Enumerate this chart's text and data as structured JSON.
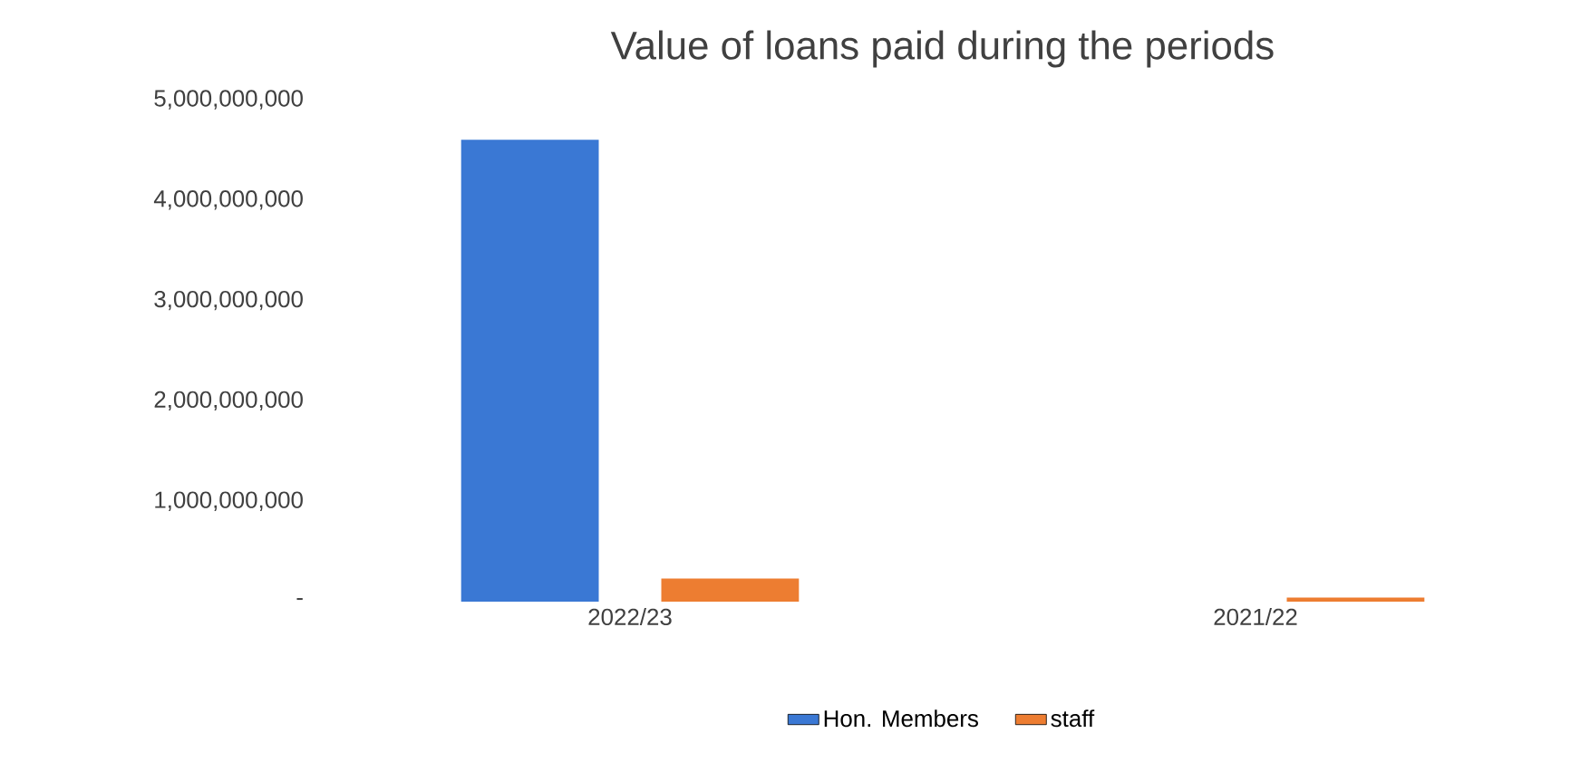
{
  "chart_data": {
    "type": "bar",
    "title": "Value of loans paid during the periods",
    "categories": [
      "2022/23",
      "2021/22"
    ],
    "series": [
      {
        "name": "Hon. Members",
        "color": "#3a78d4",
        "values": [
          4600000000,
          0
        ]
      },
      {
        "name": "staff",
        "color": "#ed7d31",
        "values": [
          230000000,
          40000000
        ]
      }
    ],
    "ylim": [
      0,
      5000000000
    ],
    "yticks": [
      {
        "value": 0,
        "label": "-"
      },
      {
        "value": 1000000000,
        "label": "1,000,000,000"
      },
      {
        "value": 2000000000,
        "label": "2,000,000,000"
      },
      {
        "value": 3000000000,
        "label": "3,000,000,000"
      },
      {
        "value": 4000000000,
        "label": "4,000,000,000"
      },
      {
        "value": 5000000000,
        "label": "5,000,000,000"
      }
    ],
    "legend": "bottom",
    "grid": false
  }
}
